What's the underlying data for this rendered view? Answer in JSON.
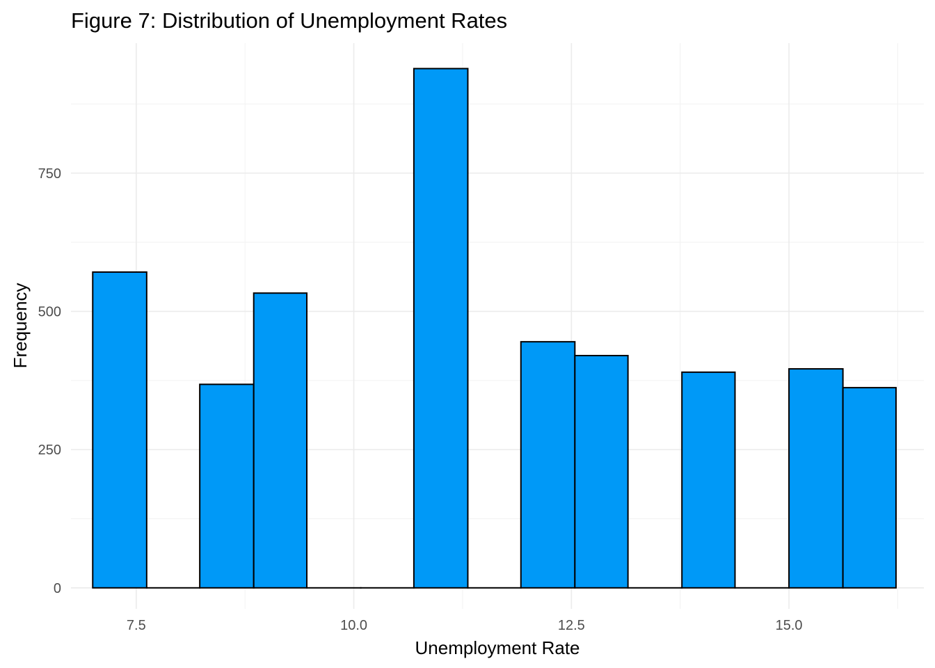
{
  "chart_data": {
    "type": "bar",
    "subtype": "histogram",
    "title": "Figure 7: Distribution of Unemployment Rates",
    "xlabel": "Unemployment Rate",
    "ylabel": "Frequency",
    "xlim": [
      6.75,
      16.55
    ],
    "ylim": [
      -38,
      985
    ],
    "x_ticks": [
      7.5,
      10.0,
      12.5,
      15.0
    ],
    "x_tick_labels": [
      "7.5",
      "10.0",
      "12.5",
      "15.0"
    ],
    "y_ticks": [
      0,
      250,
      500,
      750
    ],
    "y_tick_labels": [
      "0",
      "250",
      "500",
      "750"
    ],
    "grid": true,
    "legend": "none",
    "bar_color": "#0099F7",
    "bar_outline": "#000000",
    "bins": [
      {
        "x0": 7.0,
        "x1": 7.62,
        "count": 571
      },
      {
        "x0": 7.62,
        "x1": 8.23,
        "count": 0
      },
      {
        "x0": 8.23,
        "x1": 8.85,
        "count": 368
      },
      {
        "x0": 8.85,
        "x1": 9.46,
        "count": 533
      },
      {
        "x0": 9.46,
        "x1": 10.08,
        "count": 0
      },
      {
        "x0": 10.08,
        "x1": 10.69,
        "count": 0
      },
      {
        "x0": 10.69,
        "x1": 11.31,
        "count": 939
      },
      {
        "x0": 11.31,
        "x1": 11.92,
        "count": 0
      },
      {
        "x0": 11.92,
        "x1": 12.54,
        "count": 445
      },
      {
        "x0": 12.54,
        "x1": 13.15,
        "count": 420
      },
      {
        "x0": 13.15,
        "x1": 13.77,
        "count": 0
      },
      {
        "x0": 13.77,
        "x1": 14.38,
        "count": 390
      },
      {
        "x0": 14.38,
        "x1": 15.0,
        "count": 0
      },
      {
        "x0": 15.0,
        "x1": 15.62,
        "count": 396
      },
      {
        "x0": 15.62,
        "x1": 16.23,
        "count": 362
      }
    ]
  }
}
